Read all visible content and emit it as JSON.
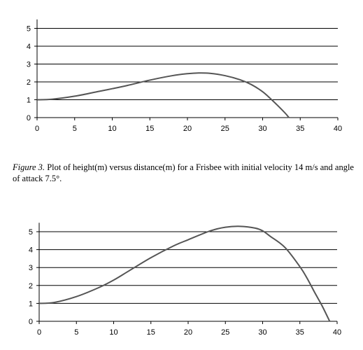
{
  "chart_data": [
    {
      "type": "line",
      "x_ticks": [
        "0",
        "5",
        "10",
        "15",
        "20",
        "25",
        "30",
        "35",
        "40"
      ],
      "y_ticks": [
        "0",
        "1",
        "2",
        "3",
        "4",
        "5"
      ],
      "xlim": [
        0,
        40
      ],
      "ylim": [
        0,
        5.5
      ],
      "grid": "horizontal",
      "series": [
        {
          "x": [
            0,
            2,
            5,
            8,
            10,
            12,
            15,
            18,
            20,
            21.5,
            23,
            25,
            27,
            28.5,
            30,
            31,
            32,
            33,
            33.5
          ],
          "y": [
            1.0,
            1.03,
            1.2,
            1.45,
            1.62,
            1.8,
            2.1,
            2.35,
            2.46,
            2.5,
            2.48,
            2.35,
            2.12,
            1.85,
            1.45,
            1.08,
            0.68,
            0.25,
            0.0
          ]
        }
      ]
    },
    {
      "type": "line",
      "x_ticks": [
        "0",
        "5",
        "10",
        "15",
        "20",
        "25",
        "30",
        "35",
        "40"
      ],
      "y_ticks": [
        "0",
        "1",
        "2",
        "3",
        "4",
        "5"
      ],
      "xlim": [
        0,
        40
      ],
      "ylim": [
        0,
        5.5
      ],
      "grid": "horizontal",
      "series": [
        {
          "x": [
            0,
            2,
            5,
            8,
            10,
            12,
            15,
            18,
            20,
            23,
            25,
            27,
            29,
            30,
            31,
            33,
            35,
            36,
            37,
            38,
            39
          ],
          "y": [
            1.0,
            1.05,
            1.38,
            1.88,
            2.3,
            2.8,
            3.55,
            4.2,
            4.55,
            5.05,
            5.25,
            5.3,
            5.2,
            5.05,
            4.75,
            4.12,
            3.05,
            2.38,
            1.6,
            0.85,
            0.0
          ]
        }
      ]
    }
  ],
  "caption": {
    "label": "Figure 3.",
    "text": "Plot of height(m) versus distance(m) for a Frisbee with initial velocity 14 m/s and angle of attack 7.5°."
  }
}
